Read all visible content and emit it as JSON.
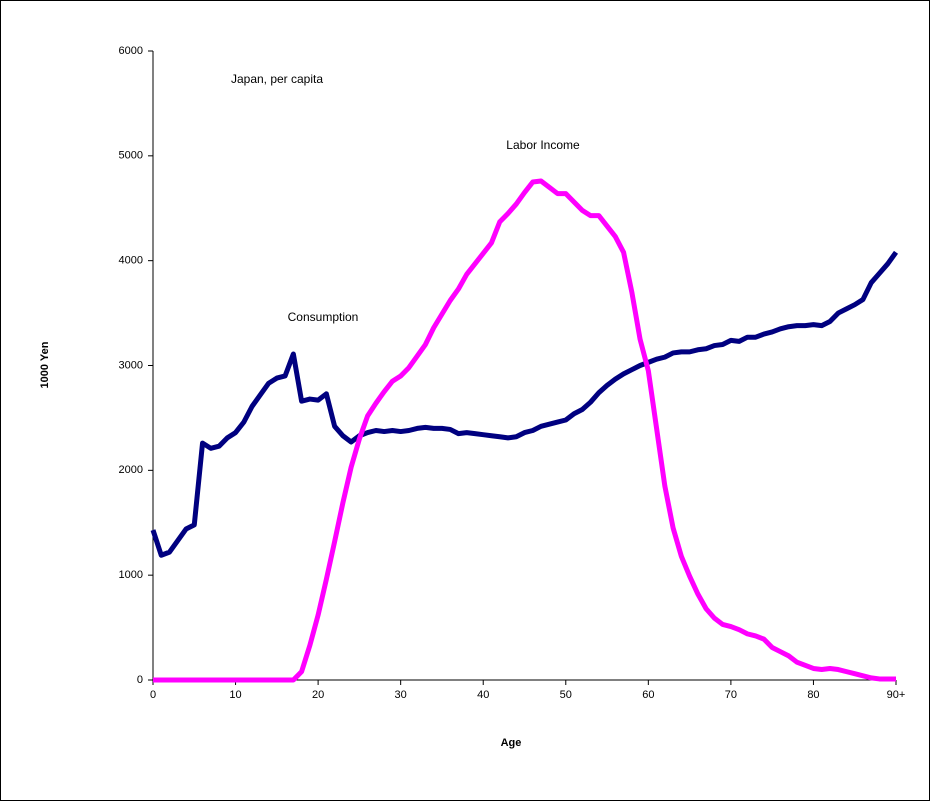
{
  "chart_data": {
    "type": "line",
    "annotations": [
      "Japan, per capita",
      "Labor Income",
      "Consumption"
    ],
    "xlabel": "Age",
    "ylabel": "1000 Yen",
    "x": [
      0,
      1,
      2,
      3,
      4,
      5,
      6,
      7,
      8,
      9,
      10,
      11,
      12,
      13,
      14,
      15,
      16,
      17,
      18,
      19,
      20,
      21,
      22,
      23,
      24,
      25,
      26,
      27,
      28,
      29,
      30,
      31,
      32,
      33,
      34,
      35,
      36,
      37,
      38,
      39,
      40,
      41,
      42,
      43,
      44,
      45,
      46,
      47,
      48,
      49,
      50,
      51,
      52,
      53,
      54,
      55,
      56,
      57,
      58,
      59,
      60,
      61,
      62,
      63,
      64,
      65,
      66,
      67,
      68,
      69,
      70,
      71,
      72,
      73,
      74,
      75,
      76,
      77,
      78,
      79,
      80,
      81,
      82,
      83,
      84,
      85,
      86,
      87,
      88,
      89,
      90
    ],
    "series": [
      {
        "name": "Consumption",
        "color": "#000080",
        "values": [
          1430,
          1190,
          1220,
          1330,
          1440,
          1480,
          2260,
          2210,
          2230,
          2310,
          2360,
          2460,
          2610,
          2720,
          2830,
          2880,
          2900,
          3110,
          2660,
          2680,
          2670,
          2730,
          2420,
          2330,
          2270,
          2330,
          2360,
          2380,
          2370,
          2380,
          2370,
          2380,
          2400,
          2410,
          2400,
          2400,
          2390,
          2350,
          2360,
          2350,
          2340,
          2330,
          2320,
          2310,
          2320,
          2360,
          2380,
          2420,
          2440,
          2460,
          2480,
          2540,
          2580,
          2650,
          2740,
          2810,
          2870,
          2920,
          2960,
          3000,
          3030,
          3060,
          3080,
          3120,
          3130,
          3130,
          3150,
          3160,
          3190,
          3200,
          3240,
          3230,
          3270,
          3270,
          3300,
          3320,
          3350,
          3370,
          3380,
          3380,
          3390,
          3380,
          3420,
          3500,
          3540,
          3580,
          3630,
          3790,
          3880,
          3970,
          4080
        ]
      },
      {
        "name": "Labor Income",
        "color": "#ff00ff",
        "values": [
          0,
          0,
          0,
          0,
          0,
          0,
          0,
          0,
          0,
          0,
          0,
          0,
          0,
          0,
          0,
          0,
          0,
          0,
          80,
          330,
          620,
          960,
          1320,
          1690,
          2030,
          2300,
          2520,
          2640,
          2750,
          2850,
          2900,
          2980,
          3090,
          3200,
          3360,
          3490,
          3620,
          3730,
          3870,
          3970,
          4070,
          4170,
          4370,
          4450,
          4540,
          4650,
          4750,
          4760,
          4700,
          4640,
          4640,
          4560,
          4480,
          4430,
          4430,
          4330,
          4230,
          4080,
          3700,
          3250,
          2950,
          2400,
          1850,
          1450,
          1180,
          990,
          820,
          680,
          590,
          530,
          510,
          480,
          440,
          420,
          390,
          310,
          270,
          230,
          170,
          140,
          110,
          100,
          110,
          100,
          80,
          60,
          40,
          20,
          10,
          10,
          10
        ]
      }
    ],
    "xlim": [
      0,
      90
    ],
    "xticks": [
      0,
      10,
      20,
      30,
      40,
      50,
      60,
      70,
      80,
      {
        "value": 90,
        "label": "90+"
      }
    ],
    "ylim": [
      0,
      6000
    ],
    "yticks": [
      0,
      1000,
      2000,
      3000,
      4000,
      5000,
      6000
    ]
  }
}
